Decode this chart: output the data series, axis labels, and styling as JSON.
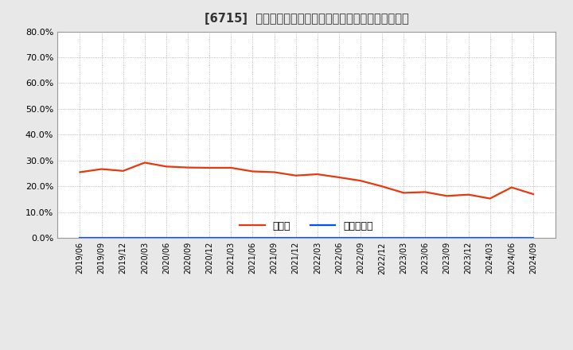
{
  "title": "[6715]  現頲金、有利子負債の総資産に対する比率の推移",
  "x_labels": [
    "2019/06",
    "2019/09",
    "2019/12",
    "2020/03",
    "2020/06",
    "2020/09",
    "2020/12",
    "2021/03",
    "2021/06",
    "2021/09",
    "2021/12",
    "2022/03",
    "2022/06",
    "2022/09",
    "2022/12",
    "2023/03",
    "2023/06",
    "2023/09",
    "2023/12",
    "2024/03",
    "2024/06",
    "2024/09"
  ],
  "cash_ratio": [
    0.255,
    0.267,
    0.26,
    0.292,
    0.277,
    0.273,
    0.272,
    0.272,
    0.258,
    0.255,
    0.242,
    0.247,
    0.235,
    0.222,
    0.2,
    0.175,
    0.178,
    0.163,
    0.168,
    0.153,
    0.196,
    0.17
  ],
  "debt_ratio": [
    0.0,
    0.0,
    0.0,
    0.0,
    0.0,
    0.0,
    0.0,
    0.0,
    0.0,
    0.0,
    0.0,
    0.0,
    0.0,
    0.0,
    0.0,
    0.0,
    0.0,
    0.0,
    0.0,
    0.0,
    0.0,
    0.0
  ],
  "cash_color": "#e8380d",
  "debt_color": "#0050ff",
  "background_color": "#e8e8e8",
  "plot_bg_color": "#ffffff",
  "ylim": [
    0.0,
    0.8
  ],
  "yticks": [
    0.0,
    0.1,
    0.2,
    0.3,
    0.4,
    0.5,
    0.6,
    0.7,
    0.8
  ],
  "legend_cash": "現頲金",
  "legend_debt": "有利子負債",
  "title_fontsize": 10.5,
  "grid_color": "#aaaaaa",
  "line_width": 1.6
}
